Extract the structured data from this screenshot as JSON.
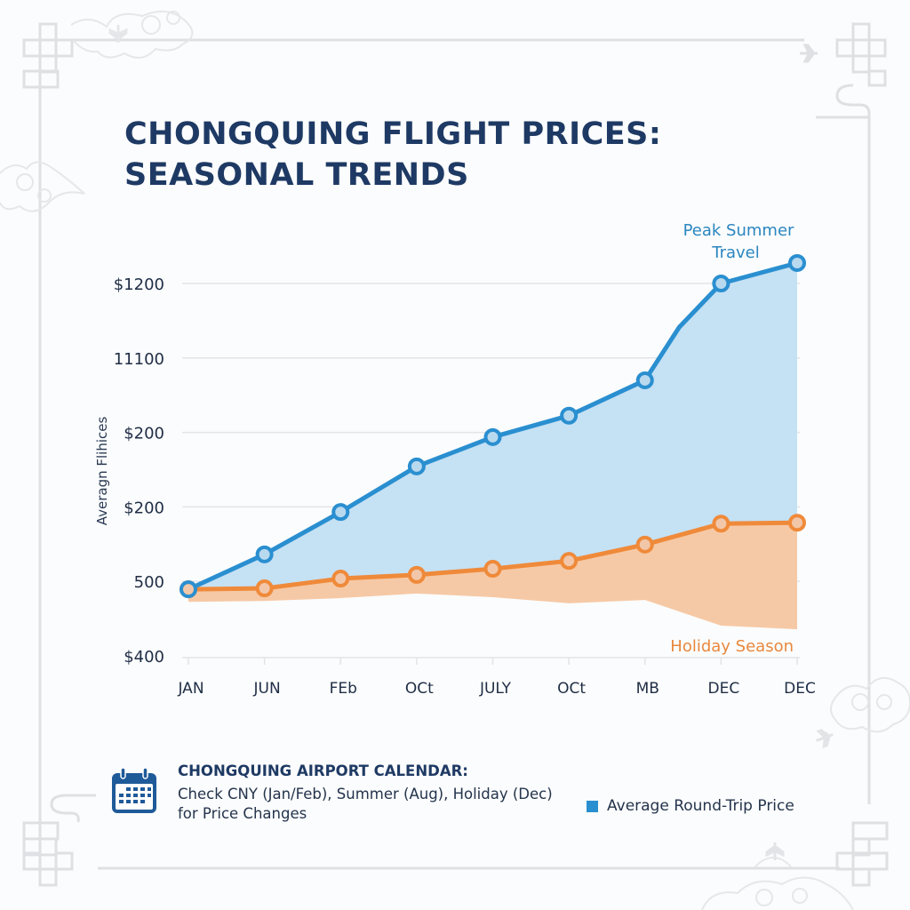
{
  "title": {
    "line1": "CHONGQUING FLIGHT PRICES:",
    "line2": "SEASONAL TRENDS"
  },
  "colors": {
    "title": "#1e3a64",
    "blue_line": "#2a8fd0",
    "blue_fill": "#c5e1f4",
    "orange_line": "#ef8a3a",
    "orange_fill": "#f6c9a6",
    "marker_fill_blue": "#b9d9ef",
    "marker_fill_orange": "#f2c7a9",
    "grid": "#e2e4e8",
    "decor": "#dcdde0",
    "annotation_blue": "#2a86c0",
    "annotation_orange": "#e8883e"
  },
  "chart_data": {
    "type": "area",
    "title": "CHONGQUING FLIGHT PRICES: SEASONAL TRENDS",
    "xlabel": "",
    "ylabel": "Averagn Flihices",
    "categories": [
      "JAN",
      "JUN",
      "FEb",
      "OCt",
      "JULY",
      "OCt",
      "MB",
      "DEC",
      "DEC"
    ],
    "y_tick_labels": [
      "$400",
      "500",
      "$200",
      "$200",
      "11100",
      "$1200"
    ],
    "ylim": [
      400,
      1200
    ],
    "grid": true,
    "series": [
      {
        "name": "Average Round-Trip Price",
        "color": "#2a8fd0",
        "values": [
          543,
          618,
          709,
          807,
          870,
          916,
          992,
          1200,
          1244
        ],
        "extra_vertex": {
          "between": [
            6,
            7
          ],
          "position": 0.45,
          "value": 1106
        },
        "markers": true,
        "fill_to_bottom_of": "orange-band"
      },
      {
        "name": "Holiday Season",
        "color": "#ef8a3a",
        "values": [
          543,
          545,
          566,
          574,
          587,
          604,
          639,
          684,
          686
        ],
        "band_lower": [
          516,
          518,
          524,
          534,
          526,
          513,
          520,
          465,
          457
        ],
        "markers": true
      }
    ],
    "annotations": [
      {
        "text_line1": "Peak Summer",
        "text_line2": "Travel",
        "near": "top-right",
        "color": "#2a86c0"
      },
      {
        "text": "Holiday Season",
        "near": "bottom-right",
        "color": "#e8883e"
      }
    ],
    "legend": {
      "position": "bottom-right",
      "entries": [
        "Average Round-Trip Price"
      ]
    }
  },
  "footer": {
    "icon": "calendar-icon",
    "heading": "CHONGQUING AIRPORT CALENDAR:",
    "line1": "Check CNY (Jan/Feb), Summer (Aug), Holiday (Dec)",
    "line2": "for Price Changes"
  },
  "legend": {
    "label": "Average Round-Trip Price"
  }
}
